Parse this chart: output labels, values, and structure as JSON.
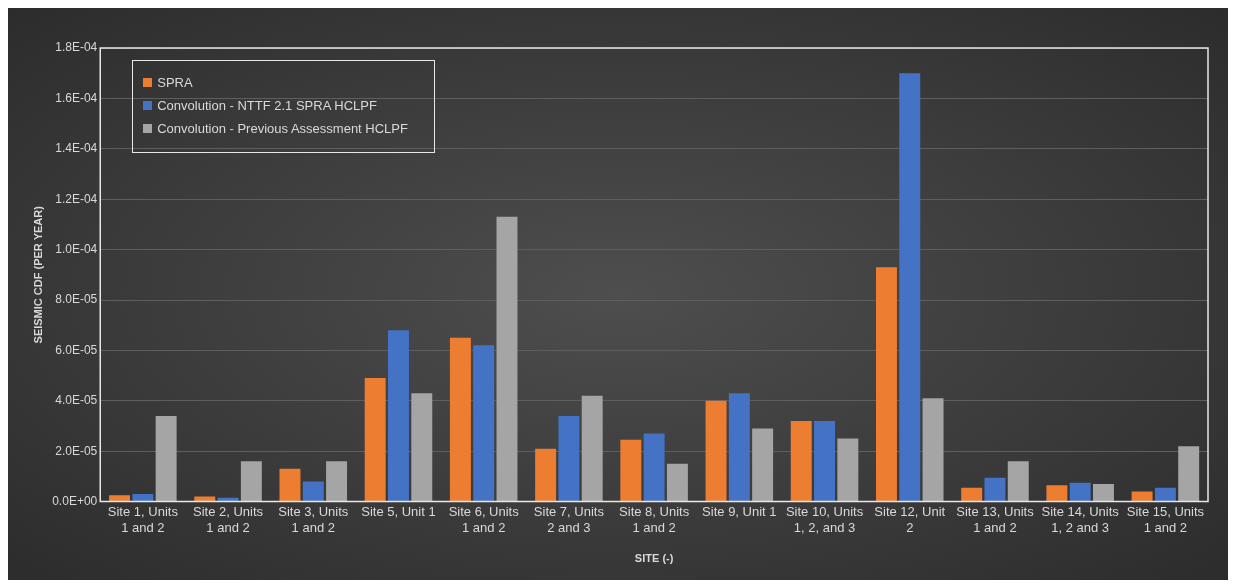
{
  "chart_data": {
    "type": "bar",
    "xlabel": "SITE (-)",
    "ylabel": "SEISMIC CDF (PER YEAR)",
    "categories": [
      "Site 1, Units 1 and 2",
      "Site 2, Units 1 and 2",
      "Site 3, Units 1 and 2",
      "Site 5, Unit 1",
      "Site 6, Units 1 and 2",
      "Site 7, Units 2 and 3",
      "Site 8, Units 1 and 2",
      "Site 9, Unit 1",
      "Site 10, Units 1, 2, and 3",
      "Site 12, Unit 2",
      "Site 13, Units 1 and 2",
      "Site 14, Units 1, 2 and 3",
      "Site 15, Units 1 and 2"
    ],
    "series": [
      {
        "name": "SPRA",
        "color": "#ed7d31",
        "values": [
          2.5e-06,
          2e-06,
          1.3e-05,
          4.9e-05,
          6.5e-05,
          2.1e-05,
          2.45e-05,
          4e-05,
          3.2e-05,
          9.3e-05,
          5.5e-06,
          6.5e-06,
          4e-06
        ]
      },
      {
        "name": "Convolution - NTTF 2.1 SPRA HCLPF",
        "color": "#4472c4",
        "values": [
          3e-06,
          1.5e-06,
          8e-06,
          6.8e-05,
          6.2e-05,
          3.4e-05,
          2.7e-05,
          4.3e-05,
          3.2e-05,
          0.00017,
          9.5e-06,
          7.5e-06,
          5.5e-06
        ]
      },
      {
        "name": "Convolution - Previous Assessment HCLPF",
        "color": "#a5a5a5",
        "values": [
          3.4e-05,
          1.6e-05,
          1.6e-05,
          4.3e-05,
          0.000113,
          4.2e-05,
          1.5e-05,
          2.9e-05,
          2.5e-05,
          4.1e-05,
          1.6e-05,
          7e-06,
          2.2e-05
        ]
      }
    ],
    "ylim": [
      0,
      0.00018
    ],
    "yticks": [
      {
        "value": 0,
        "label": "0.0E+00"
      },
      {
        "value": 2e-05,
        "label": "2.0E-05"
      },
      {
        "value": 4e-05,
        "label": "4.0E-05"
      },
      {
        "value": 6e-05,
        "label": "6.0E-05"
      },
      {
        "value": 8e-05,
        "label": "8.0E-05"
      },
      {
        "value": 0.0001,
        "label": "1.0E-04"
      },
      {
        "value": 0.00012,
        "label": "1.2E-04"
      },
      {
        "value": 0.00014,
        "label": "1.4E-04"
      },
      {
        "value": 0.00016,
        "label": "1.6E-04"
      },
      {
        "value": 0.00018,
        "label": "1.8E-04"
      }
    ],
    "grid": "y",
    "legend": "top left"
  }
}
